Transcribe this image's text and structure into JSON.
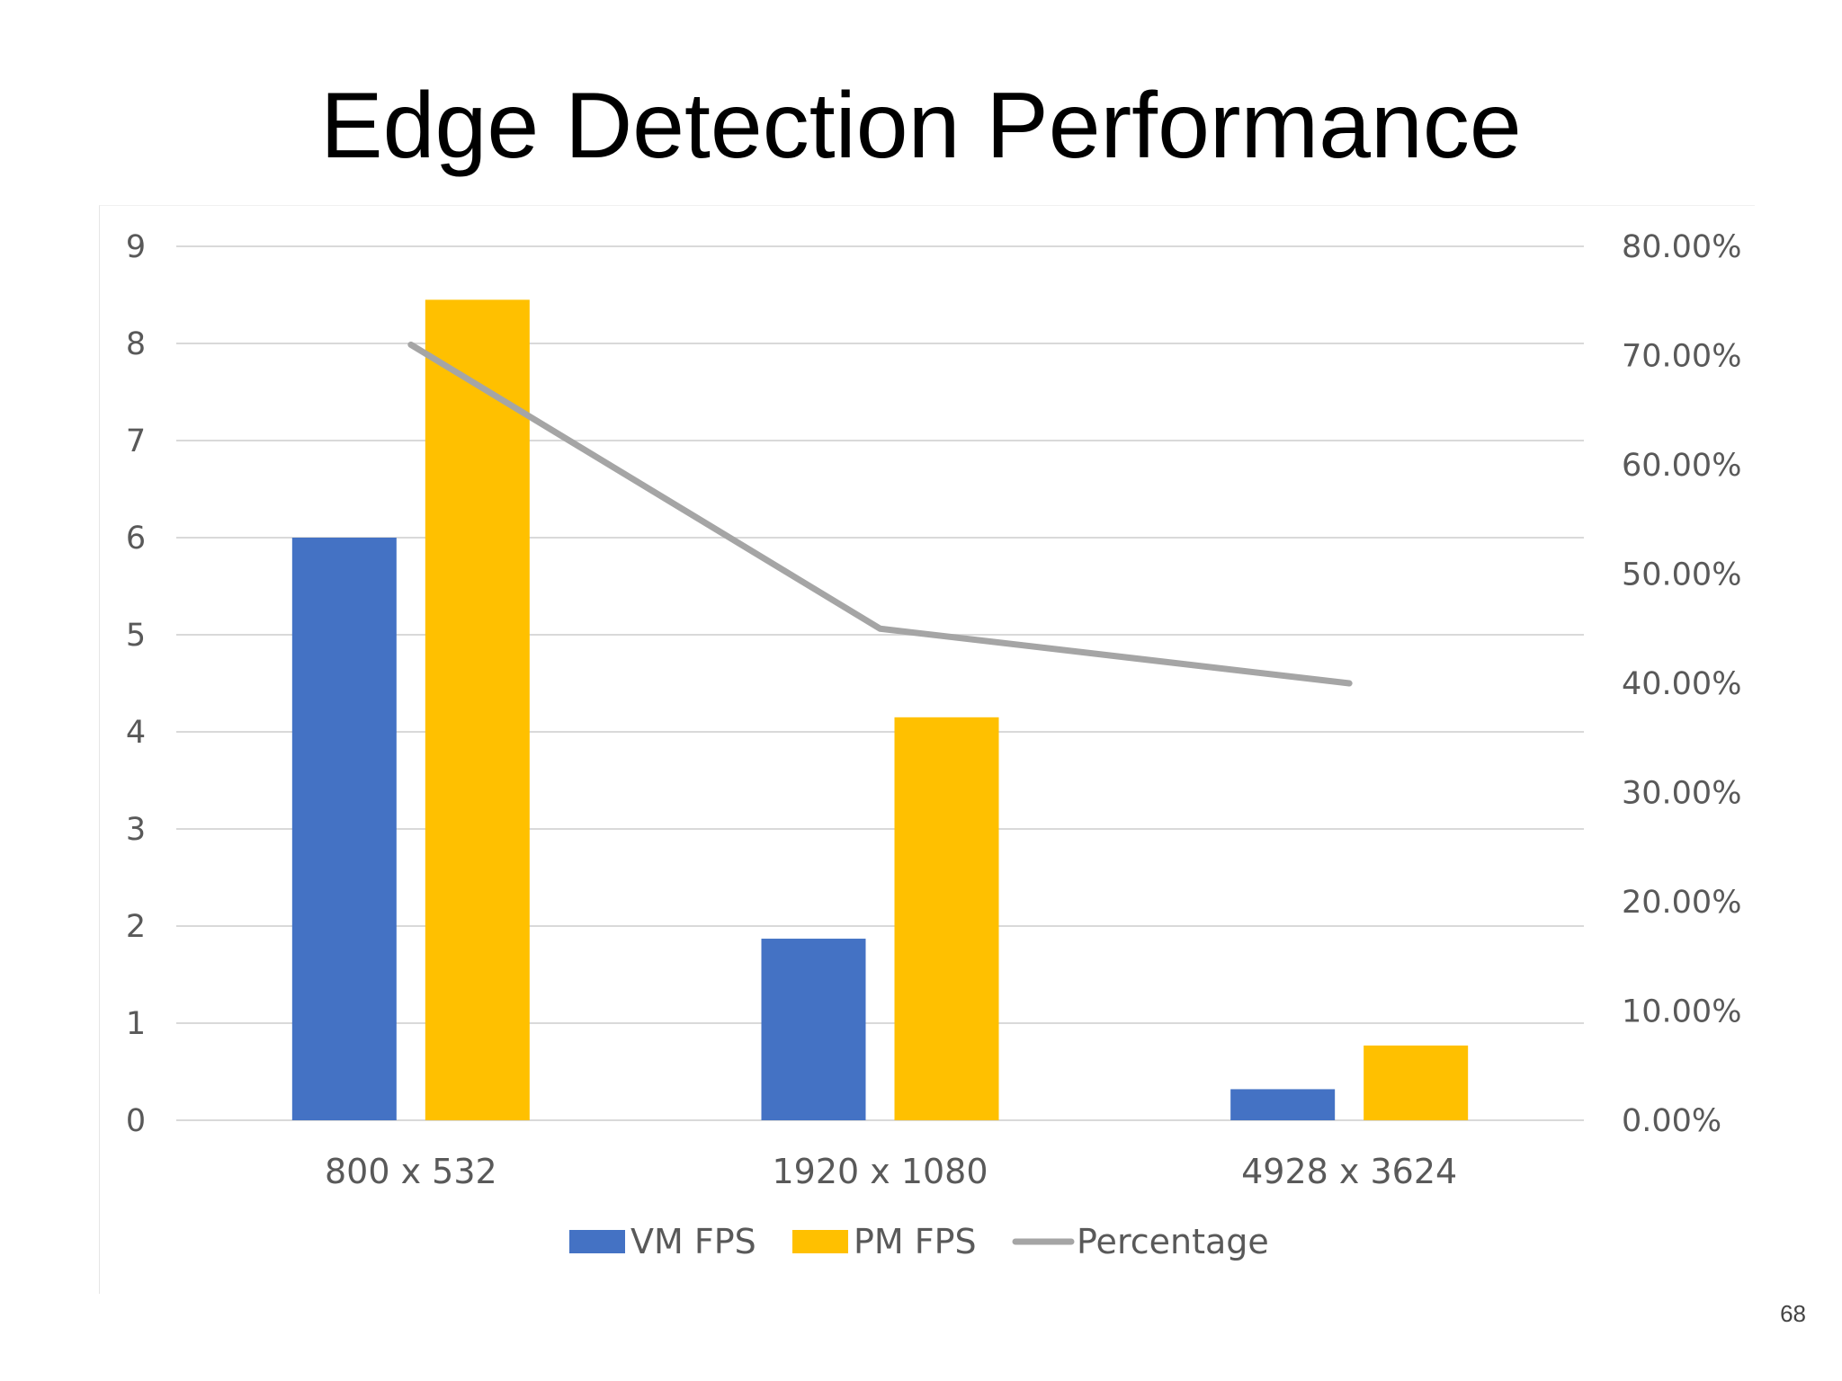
{
  "slide": {
    "title": "Edge Detection Performance",
    "page_number": "68"
  },
  "chart_data": {
    "type": "bar",
    "categories": [
      "800 x 532",
      "1920 x 1080",
      "4928 x 3624"
    ],
    "series": [
      {
        "name": "VM FPS",
        "type": "bar",
        "axis": "left",
        "color": "#4472C4",
        "values": [
          6.0,
          1.87,
          0.32
        ]
      },
      {
        "name": "PM FPS",
        "type": "bar",
        "axis": "left",
        "color": "#FFC000",
        "values": [
          8.45,
          4.15,
          0.77
        ]
      },
      {
        "name": "Percentage",
        "type": "line",
        "axis": "right",
        "color": "#A5A5A5",
        "values": [
          0.71,
          0.45,
          0.4
        ]
      }
    ],
    "y_left": {
      "min": 0,
      "max": 9,
      "step": 1,
      "tick_labels": [
        "0",
        "1",
        "2",
        "3",
        "4",
        "5",
        "6",
        "7",
        "8",
        "9"
      ]
    },
    "y_right": {
      "min": 0,
      "max": 0.8,
      "step": 0.1,
      "tick_labels": [
        "0.00%",
        "10.00%",
        "20.00%",
        "30.00%",
        "40.00%",
        "50.00%",
        "60.00%",
        "70.00%",
        "80.00%"
      ]
    },
    "grid": true,
    "legend_position": "bottom",
    "gridline_color": "#D9D9D9"
  }
}
